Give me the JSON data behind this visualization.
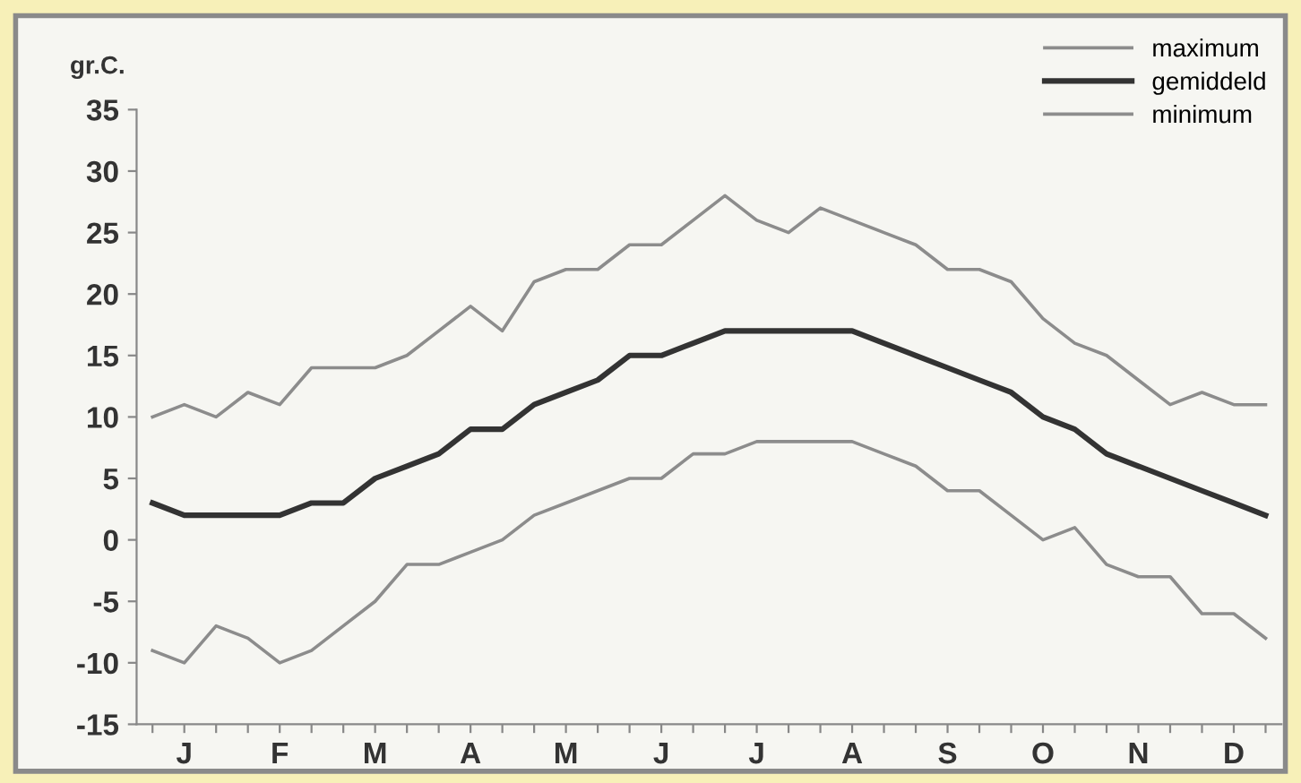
{
  "chart_data": {
    "type": "line",
    "ylabel": "gr.C.",
    "categories": [
      null,
      "J",
      null,
      null,
      "F",
      null,
      null,
      "M",
      null,
      null,
      "A",
      null,
      null,
      "M",
      null,
      null,
      "J",
      null,
      null,
      "J",
      null,
      null,
      "A",
      null,
      null,
      "S",
      null,
      null,
      "O",
      null,
      null,
      "N",
      null,
      null,
      "D",
      null
    ],
    "ylim": [
      -15,
      35
    ],
    "yticks": [
      -15,
      -10,
      -5,
      0,
      5,
      10,
      15,
      20,
      25,
      30,
      35
    ],
    "grid": false,
    "legend": "top right",
    "marker": "none",
    "line_style": "solid",
    "series": [
      {
        "name": "maximum",
        "color": "#8c8c8c",
        "values": [
          10,
          11,
          10,
          12,
          11,
          14,
          14,
          14,
          15,
          17,
          19,
          17,
          21,
          22,
          22,
          24,
          24,
          26,
          28,
          26,
          25,
          27,
          26,
          25,
          24,
          22,
          22,
          21,
          18,
          16,
          15,
          13,
          11,
          12,
          11,
          11
        ]
      },
      {
        "name": "gemiddeld",
        "color": "#333333",
        "values": [
          3,
          2,
          2,
          2,
          2,
          3,
          3,
          5,
          6,
          7,
          9,
          9,
          11,
          12,
          13,
          15,
          15,
          16,
          17,
          17,
          17,
          17,
          17,
          16,
          15,
          14,
          13,
          12,
          10,
          9,
          7,
          6,
          5,
          4,
          3,
          2
        ]
      },
      {
        "name": "minimum",
        "color": "#8c8c8c",
        "values": [
          -9,
          -10,
          -7,
          -8,
          -10,
          -9,
          -7,
          -5,
          -2,
          -2,
          -1,
          0,
          2,
          3,
          4,
          5,
          5,
          7,
          7,
          8,
          8,
          8,
          8,
          7,
          6,
          4,
          4,
          2,
          0,
          1,
          -2,
          -3,
          -3,
          -6,
          -6,
          -8
        ]
      }
    ]
  }
}
